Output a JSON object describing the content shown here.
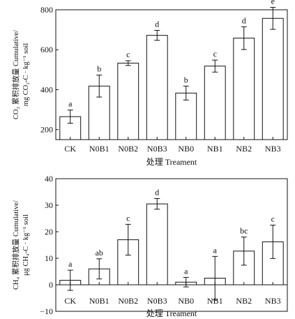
{
  "chart_data": [
    {
      "type": "bar",
      "ylabel_lines": [
        "CO₂ 累积排放量 Cumulative/",
        "mg CO₂-C · kg⁻¹ soil"
      ],
      "xlabel": "处理 Treament",
      "categories": [
        "CK",
        "N0B1",
        "N0B2",
        "N0B3",
        "NB0",
        "NB1",
        "NB2",
        "NB3"
      ],
      "values": [
        265,
        418,
        533,
        672,
        383,
        518,
        658,
        757
      ],
      "errors": [
        33,
        55,
        12,
        25,
        35,
        30,
        57,
        55
      ],
      "letters": [
        "a",
        "b",
        "c",
        "d",
        "b",
        "c",
        "d",
        "e"
      ],
      "ylim": [
        150,
        800
      ],
      "yticks": [
        200,
        400,
        600,
        800
      ]
    },
    {
      "type": "bar",
      "ylabel_lines": [
        "CH₄ 累积排放量 Cumulative/",
        "μg CH₄-C · kg⁻¹ soil"
      ],
      "xlabel": "处理 Treament",
      "categories": [
        "CK",
        "N0B1",
        "N0B2",
        "N0B3",
        "NB0",
        "NB1",
        "NB2",
        "NB3"
      ],
      "values": [
        1.7,
        6.0,
        17.0,
        30.5,
        1.0,
        2.5,
        12.7,
        16.2
      ],
      "errors": [
        3.8,
        3.8,
        5.8,
        2.0,
        1.8,
        8.2,
        5.3,
        6.3
      ],
      "letters": [
        "a",
        "ab",
        "c",
        "d",
        "a",
        "a",
        "bc",
        "c"
      ],
      "ylim": [
        -10,
        40
      ],
      "yticks": [
        -10,
        0,
        10,
        20,
        30,
        40
      ]
    }
  ]
}
